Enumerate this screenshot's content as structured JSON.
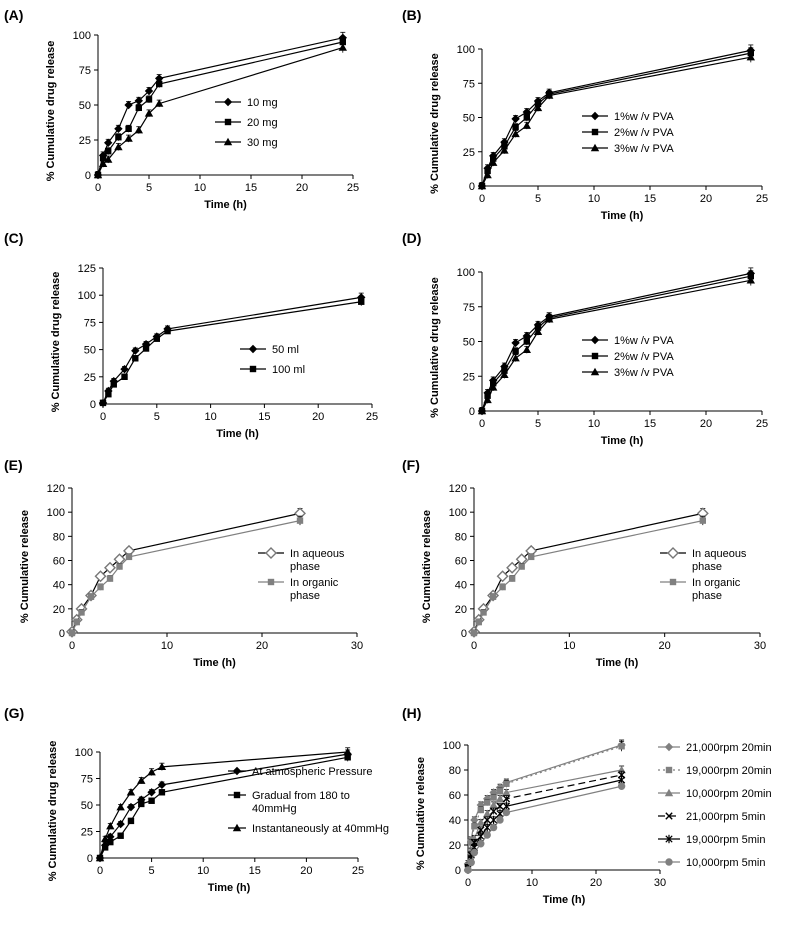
{
  "colors": {
    "black": "#000000",
    "grey": "#808080"
  },
  "chart_data": [
    {
      "panel": "(A)",
      "type": "line",
      "xlabel": "Time (h)",
      "ylabel": "% Cumulative drug release",
      "xlim": [
        0,
        25
      ],
      "ylim": [
        0,
        100
      ],
      "xticks": [
        "0",
        "5",
        "10",
        "15",
        "20",
        "25"
      ],
      "yticks": [
        "0",
        "25",
        "50",
        "75",
        "100"
      ],
      "legend_position": "center-right",
      "series": [
        {
          "name": "10 mg",
          "marker": "diamond",
          "color": "#000000",
          "x": [
            0,
            0.5,
            1,
            2,
            3,
            4,
            5,
            6,
            24
          ],
          "y": [
            0,
            14,
            23,
            33,
            50,
            53,
            60,
            69,
            98
          ]
        },
        {
          "name": "20 mg",
          "marker": "square",
          "color": "#000000",
          "x": [
            0,
            0.5,
            1,
            2,
            3,
            4,
            5,
            6,
            24
          ],
          "y": [
            0,
            12,
            17,
            27,
            33,
            48,
            54,
            65,
            95
          ]
        },
        {
          "name": "30 mg",
          "marker": "triangle",
          "color": "#000000",
          "x": [
            0,
            0.5,
            1,
            2,
            3,
            4,
            5,
            6,
            24
          ],
          "y": [
            0,
            8,
            11,
            20,
            26,
            32,
            44,
            51,
            91
          ]
        }
      ]
    },
    {
      "panel": "(B)",
      "type": "line",
      "xlabel": "Time (h)",
      "ylabel": "% Cumulative drug release",
      "xlim": [
        0,
        25
      ],
      "ylim": [
        0,
        100
      ],
      "xticks": [
        "0",
        "5",
        "10",
        "15",
        "20",
        "25"
      ],
      "yticks": [
        "0",
        "25",
        "50",
        "75",
        "100"
      ],
      "legend_position": "center-right",
      "series": [
        {
          "name": "1%w /v PVA",
          "marker": "diamond",
          "color": "#000000",
          "x": [
            0,
            0.5,
            1,
            2,
            3,
            4,
            5,
            6,
            24
          ],
          "y": [
            0,
            13,
            22,
            32,
            49,
            54,
            62,
            68,
            99
          ]
        },
        {
          "name": "2%w /v PVA",
          "marker": "square",
          "color": "#000000",
          "x": [
            0,
            0.5,
            1,
            2,
            3,
            4,
            5,
            6,
            24
          ],
          "y": [
            0,
            11,
            20,
            29,
            43,
            50,
            60,
            67,
            97
          ]
        },
        {
          "name": "3%w /v PVA",
          "marker": "triangle",
          "color": "#000000",
          "x": [
            0,
            0.5,
            1,
            2,
            3,
            4,
            5,
            6,
            24
          ],
          "y": [
            0,
            8,
            17,
            26,
            38,
            44,
            57,
            66,
            94
          ]
        }
      ]
    },
    {
      "panel": "(C)",
      "type": "line",
      "xlabel": "Time (h)",
      "ylabel": "% Cumulative drug release",
      "xlim": [
        0,
        25
      ],
      "ylim": [
        0,
        125
      ],
      "xticks": [
        "0",
        "5",
        "10",
        "15",
        "20",
        "25"
      ],
      "yticks": [
        "0",
        "25",
        "50",
        "75",
        "100",
        "125"
      ],
      "legend_position": "center-right",
      "series": [
        {
          "name": "50 ml",
          "marker": "diamond",
          "color": "#000000",
          "x": [
            0,
            0.5,
            1,
            2,
            3,
            4,
            5,
            6,
            24
          ],
          "y": [
            1,
            12,
            21,
            32,
            49,
            55,
            62,
            69,
            98
          ]
        },
        {
          "name": "100 ml",
          "marker": "square",
          "color": "#000000",
          "x": [
            0,
            0.5,
            1,
            2,
            3,
            4,
            5,
            6,
            24
          ],
          "y": [
            1,
            9,
            18,
            25,
            42,
            51,
            60,
            67,
            94
          ]
        }
      ]
    },
    {
      "panel": "(D)",
      "type": "line",
      "xlabel": "Time (h)",
      "ylabel": "% Cumulative drug release",
      "xlim": [
        0,
        25
      ],
      "ylim": [
        0,
        100
      ],
      "xticks": [
        "0",
        "5",
        "10",
        "15",
        "20",
        "25"
      ],
      "yticks": [
        "0",
        "25",
        "50",
        "75",
        "100"
      ],
      "legend_position": "center-right",
      "series": [
        {
          "name": "1%w /v PVA",
          "marker": "diamond",
          "color": "#000000",
          "x": [
            0,
            0.5,
            1,
            2,
            3,
            4,
            5,
            6,
            24
          ],
          "y": [
            0,
            13,
            22,
            32,
            49,
            54,
            62,
            68,
            99
          ]
        },
        {
          "name": "2%w /v PVA",
          "marker": "square",
          "color": "#000000",
          "x": [
            0,
            0.5,
            1,
            2,
            3,
            4,
            5,
            6,
            24
          ],
          "y": [
            0,
            11,
            20,
            29,
            43,
            50,
            60,
            67,
            97
          ]
        },
        {
          "name": "3%w /v PVA",
          "marker": "triangle",
          "color": "#000000",
          "x": [
            0,
            0.5,
            1,
            2,
            3,
            4,
            5,
            6,
            24
          ],
          "y": [
            0,
            8,
            17,
            26,
            38,
            44,
            57,
            66,
            94
          ]
        }
      ]
    },
    {
      "panel": "(E)",
      "type": "line",
      "xlabel": "Time (h)",
      "ylabel": "% Cumulative release",
      "xlim": [
        0,
        30
      ],
      "ylim": [
        0,
        120
      ],
      "xticks": [
        "0",
        "10",
        "20",
        "30"
      ],
      "yticks": [
        "0",
        "20",
        "40",
        "60",
        "80",
        "100",
        "120"
      ],
      "legend_position": "center-right",
      "series": [
        {
          "name": "In aqueous phase",
          "marker": "diamond-open",
          "color": "#000000",
          "x": [
            0,
            0.5,
            1,
            2,
            3,
            4,
            5,
            6,
            24
          ],
          "y": [
            1,
            11,
            20,
            31,
            47,
            54,
            61,
            68,
            99
          ]
        },
        {
          "name": "In organic phase",
          "marker": "square",
          "color": "#808080",
          "x": [
            0,
            0.5,
            1,
            2,
            3,
            4,
            5,
            6,
            24
          ],
          "y": [
            0,
            9,
            17,
            30,
            38,
            45,
            55,
            63,
            93
          ]
        }
      ]
    },
    {
      "panel": "(F)",
      "type": "line",
      "xlabel": "Time (h)",
      "ylabel": "% Cumulative release",
      "xlim": [
        0,
        30
      ],
      "ylim": [
        0,
        120
      ],
      "xticks": [
        "0",
        "10",
        "20",
        "30"
      ],
      "yticks": [
        "0",
        "20",
        "40",
        "60",
        "80",
        "100",
        "120"
      ],
      "legend_position": "center-right",
      "series": [
        {
          "name": "In aqueous phase",
          "marker": "diamond-open",
          "color": "#000000",
          "x": [
            0,
            0.5,
            1,
            2,
            3,
            4,
            5,
            6,
            24
          ],
          "y": [
            1,
            11,
            20,
            31,
            47,
            54,
            61,
            68,
            99
          ]
        },
        {
          "name": "In organic phase",
          "marker": "square",
          "color": "#808080",
          "x": [
            0,
            0.5,
            1,
            2,
            3,
            4,
            5,
            6,
            24
          ],
          "y": [
            0,
            9,
            17,
            30,
            38,
            45,
            55,
            63,
            93
          ]
        }
      ]
    },
    {
      "panel": "(G)",
      "type": "line",
      "xlabel": "Time (h)",
      "ylabel": "% Cumulative drug release",
      "xlim": [
        0,
        25
      ],
      "ylim": [
        0,
        100
      ],
      "xticks": [
        "0",
        "5",
        "10",
        "15",
        "20",
        "25"
      ],
      "yticks": [
        "0",
        "25",
        "50",
        "75",
        "100"
      ],
      "legend_position": "center-right",
      "series": [
        {
          "name": "At atmospheric Pressure",
          "marker": "diamond",
          "color": "#000000",
          "x": [
            0,
            0.5,
            1,
            2,
            3,
            4,
            5,
            6,
            24
          ],
          "y": [
            0,
            12,
            20,
            32,
            48,
            55,
            62,
            69,
            98
          ]
        },
        {
          "name": "Gradual from 180 to 40mmHg",
          "marker": "square",
          "color": "#000000",
          "x": [
            0,
            0.5,
            1,
            2,
            3,
            4,
            5,
            6,
            24
          ],
          "y": [
            0,
            10,
            15,
            21,
            35,
            51,
            54,
            62,
            95
          ]
        },
        {
          "name": "Instantaneously at 40mmHg",
          "marker": "triangle",
          "color": "#000000",
          "x": [
            0,
            0.5,
            1,
            2,
            3,
            4,
            5,
            6,
            24
          ],
          "y": [
            0,
            18,
            30,
            48,
            62,
            73,
            81,
            86,
            100
          ]
        }
      ]
    },
    {
      "panel": "(H)",
      "type": "line",
      "xlabel": "Time (h)",
      "ylabel": "% Cumulative release",
      "xlim": [
        0,
        30
      ],
      "ylim": [
        0,
        100
      ],
      "xticks": [
        "0",
        "10",
        "20",
        "30"
      ],
      "yticks": [
        "0",
        "20",
        "40",
        "60",
        "80",
        "100"
      ],
      "legend_position": "right",
      "series": [
        {
          "name": "21,000rpm 20min",
          "marker": "diamond",
          "color": "#808080",
          "dash": "",
          "x": [
            0,
            0.5,
            1,
            2,
            3,
            4,
            5,
            6,
            24
          ],
          "y": [
            5,
            24,
            40,
            52,
            57,
            62,
            66,
            70,
            100
          ]
        },
        {
          "name": "19,000rpm 20min",
          "marker": "square",
          "color": "#808080",
          "dash": "2,3",
          "x": [
            0,
            0.5,
            1,
            2,
            3,
            4,
            5,
            6,
            24
          ],
          "y": [
            3,
            22,
            35,
            48,
            54,
            58,
            63,
            69,
            99
          ]
        },
        {
          "name": "10,000rpm 20min",
          "marker": "triangle",
          "color": "#808080",
          "dash": "",
          "x": [
            0,
            0.5,
            1,
            2,
            3,
            4,
            5,
            6,
            24
          ],
          "y": [
            2,
            15,
            25,
            38,
            45,
            52,
            57,
            62,
            80
          ]
        },
        {
          "name": "21,000rpm 5min",
          "marker": "x",
          "color": "#000000",
          "dash": "7,4",
          "x": [
            0,
            0.5,
            1,
            2,
            3,
            4,
            5,
            6,
            24
          ],
          "y": [
            2,
            12,
            22,
            32,
            40,
            47,
            51,
            57,
            76
          ]
        },
        {
          "name": "19,000rpm 5min",
          "marker": "asterisk",
          "color": "#000000",
          "dash": "",
          "x": [
            0,
            0.5,
            1,
            2,
            3,
            4,
            5,
            6,
            24
          ],
          "y": [
            1,
            9,
            18,
            27,
            34,
            40,
            45,
            51,
            72
          ]
        },
        {
          "name": "10,000rpm 5min",
          "marker": "circle",
          "color": "#808080",
          "dash": "",
          "x": [
            0,
            0.5,
            1,
            2,
            3,
            4,
            5,
            6,
            24
          ],
          "y": [
            0,
            6,
            14,
            21,
            28,
            34,
            40,
            46,
            67
          ]
        }
      ]
    }
  ]
}
